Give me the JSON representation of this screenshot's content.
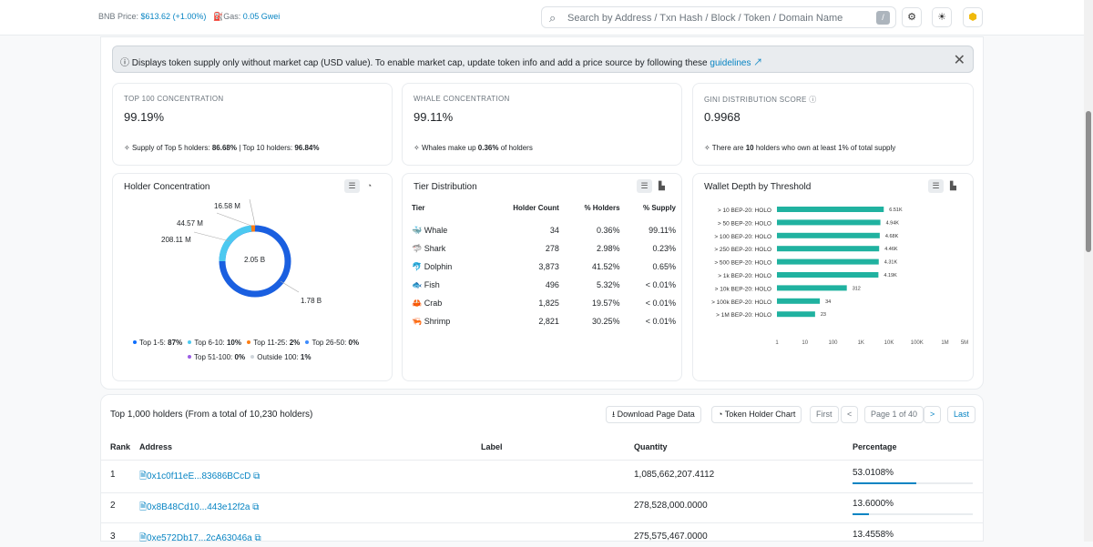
{
  "topbar": {
    "bnb_label": "BNB Price:",
    "bnb_price": "$613.62 (+1.00%)",
    "gas_label": "Gas:",
    "gas_value": "0.05 Gwei",
    "search_placeholder": "Search by Address / Txn Hash / Block / Token / Domain Name",
    "search_shortcut": "/"
  },
  "alert": {
    "text": "Displays token supply only without market cap (USD value). To enable market cap, update token info and add a price source by following these",
    "link": "guidelines ↗"
  },
  "stats": [
    {
      "label": "TOP 100 CONCENTRATION",
      "value": "99.19%",
      "foot_pre": "Supply of Top 5 holders:",
      "foot_a": "86.68%",
      "foot_mid": "| Top 10 holders:",
      "foot_b": "96.84%"
    },
    {
      "label": "WHALE CONCENTRATION",
      "value": "99.11%",
      "foot_pre": "Whales make up",
      "foot_a": "0.36%",
      "foot_mid": "of holders",
      "foot_b": ""
    },
    {
      "label": "GINI DISTRIBUTION SCORE",
      "value": "0.9968",
      "foot_pre": "There are",
      "foot_a": "10",
      "foot_mid": "holders who own at least 1% of total supply",
      "foot_b": ""
    }
  ],
  "concentration": {
    "title": "Holder Concentration",
    "labels": [
      "16.58 M",
      "44.57 M",
      "208.11 M",
      "2.05 B",
      "1.78 B"
    ],
    "legend": [
      {
        "name": "Top 1-5:",
        "pct": "87%",
        "color": "#0d6efd"
      },
      {
        "name": "Top 6-10:",
        "pct": "10%",
        "color": "#4cc9f0"
      },
      {
        "name": "Top 11-25:",
        "pct": "2%",
        "color": "#fd7e14"
      },
      {
        "name": "Top 26-50:",
        "pct": "0%",
        "color": "#3d8bfd"
      },
      {
        "name": "Top 51-100:",
        "pct": "0%",
        "color": "#9b5de5"
      },
      {
        "name": "Outside 100:",
        "pct": "1%",
        "color": "#ced4da"
      }
    ]
  },
  "tiers": {
    "title": "Tier Distribution",
    "headers": [
      "Tier",
      "Holder Count",
      "% Holders",
      "% Supply"
    ],
    "rows": [
      {
        "icon": "🐳",
        "tier": "Whale",
        "count": "34",
        "holders": "0.36%",
        "supply": "99.11%"
      },
      {
        "icon": "🦈",
        "tier": "Shark",
        "count": "278",
        "holders": "2.98%",
        "supply": "0.23%"
      },
      {
        "icon": "🐬",
        "tier": "Dolphin",
        "count": "3,873",
        "holders": "41.52%",
        "supply": "0.65%"
      },
      {
        "icon": "🐟",
        "tier": "Fish",
        "count": "496",
        "holders": "5.32%",
        "supply": "< 0.01%"
      },
      {
        "icon": "🦀",
        "tier": "Crab",
        "count": "1,825",
        "holders": "19.57%",
        "supply": "< 0.01%"
      },
      {
        "icon": "🦐",
        "tier": "Shrimp",
        "count": "2,821",
        "holders": "30.25%",
        "supply": "< 0.01%"
      }
    ]
  },
  "depth": {
    "title": "Wallet Depth by Threshold",
    "ticks": [
      "1",
      "10",
      "100",
      "1K",
      "10K",
      "100K",
      "1M",
      "5M"
    ]
  },
  "chart_data": {
    "type": "bar",
    "categories": [
      "> 10 BEP-20: HOLO",
      "> 50 BEP-20: HOLO",
      "> 100 BEP-20: HOLO",
      "> 250 BEP-20: HOLO",
      "> 500 BEP-20: HOLO",
      "> 1k BEP-20: HOLO",
      "> 10k BEP-20: HOLO",
      "> 100k BEP-20: HOLO",
      "> 1M BEP-20: HOLO"
    ],
    "values": [
      6510,
      4940,
      4680,
      4460,
      4310,
      4190,
      312,
      34,
      23
    ],
    "value_labels": [
      "6.51K",
      "4.94K",
      "4.68K",
      "4.46K",
      "4.31K",
      "4.19K",
      "312",
      "34",
      "23"
    ],
    "xscale": "log",
    "xlim": [
      1,
      5000000
    ],
    "orientation": "horizontal",
    "title": "Wallet Depth by Threshold",
    "color": "#20b2a0"
  },
  "holders": {
    "title": "Top 1,000 holders (From a total of 10,230 holders)",
    "download": "Download Page Data",
    "chart_btn": "Token Holder Chart",
    "first": "First",
    "prev": "<",
    "page": "Page 1 of 40",
    "next": ">",
    "last": "Last",
    "headers": [
      "Rank",
      "Address",
      "Label",
      "Quantity",
      "Percentage"
    ],
    "rows": [
      {
        "rank": "1",
        "address": "0x1c0f11eE...83686BCcD",
        "quantity": "1,085,662,207.4112",
        "pct": "53.0108%",
        "frac": 0.530108
      },
      {
        "rank": "2",
        "address": "0x8B48Cd10...443e12f2a",
        "quantity": "278,528,000.0000",
        "pct": "13.6000%",
        "frac": 0.136
      },
      {
        "rank": "3",
        "address": "0xe572Db17...2cA63046a",
        "quantity": "275,575,467.0000",
        "pct": "13.4558%",
        "frac": 0.134558
      }
    ]
  }
}
